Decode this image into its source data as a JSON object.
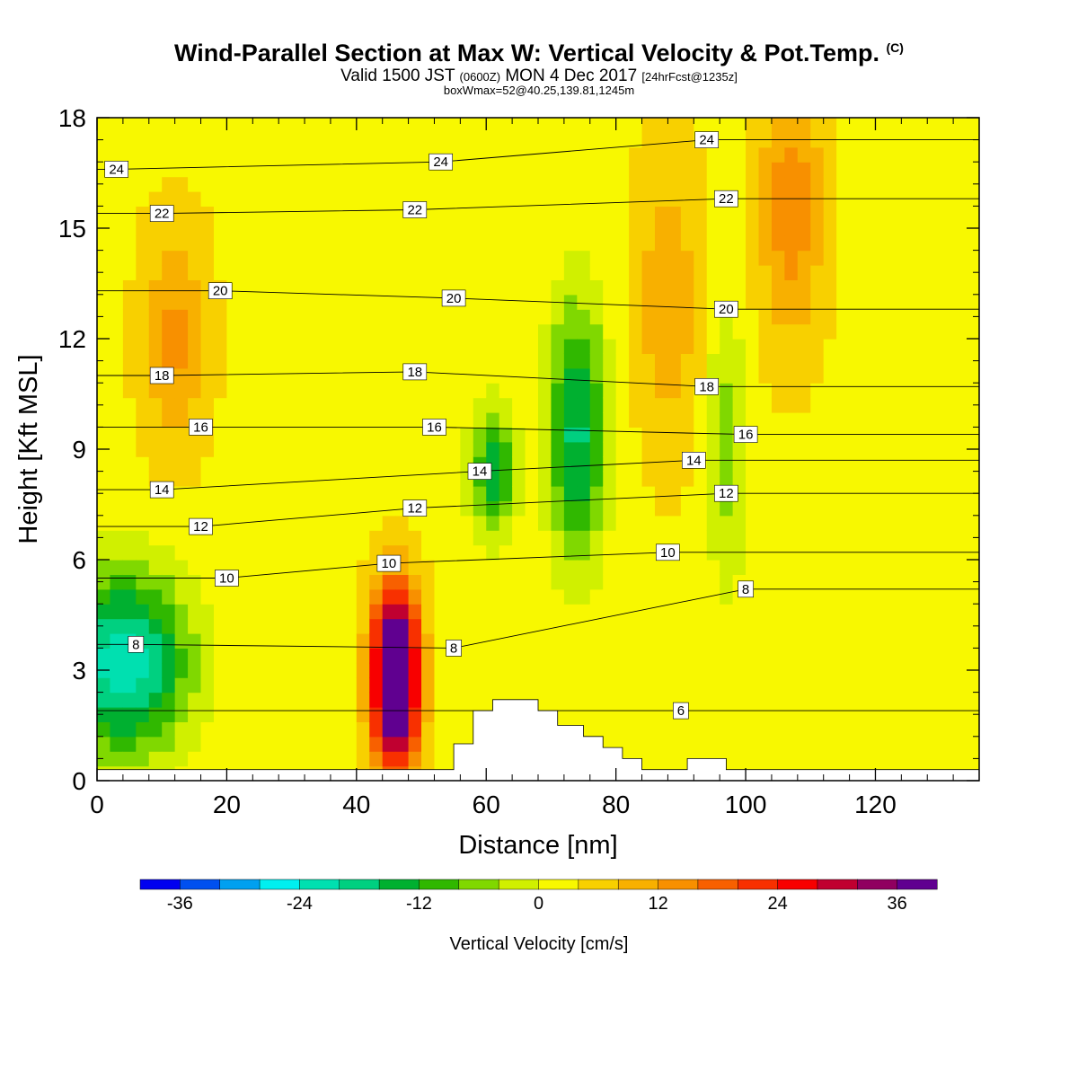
{
  "header": {
    "title": "Wind-Parallel Section at Max W: Vertical Velocity & Pot.Temp.",
    "copyright": "(C)",
    "valid_prefix": "Valid 1500 JST",
    "valid_z": "(0600Z)",
    "valid_date": "MON 4 Dec 2017",
    "forecast": "[24hrFcst@1235z]",
    "box": "boxWmax=52@40.25,139.81,1245m"
  },
  "chart_data": {
    "type": "heatmap",
    "title": "Wind-Parallel Section at Max W: Vertical Velocity & Pot.Temp.",
    "xlabel": "Distance [nm]",
    "ylabel": "Height [Kft MSL]",
    "xlim": [
      0,
      136
    ],
    "ylim": [
      0,
      18
    ],
    "xticks": [
      "0",
      "20",
      "40",
      "60",
      "80",
      "100",
      "120"
    ],
    "xtick_values": [
      0,
      20,
      40,
      60,
      80,
      100,
      120
    ],
    "yticks": [
      "0",
      "3",
      "6",
      "9",
      "12",
      "15",
      "18"
    ],
    "ytick_values": [
      0,
      3,
      6,
      9,
      12,
      15,
      18
    ],
    "colorbar": {
      "label": "Vertical Velocity [cm/s]",
      "ticks": [
        "-36",
        "-24",
        "-12",
        "0",
        "12",
        "24",
        "36"
      ],
      "tick_values": [
        -36,
        -24,
        -12,
        0,
        12,
        24,
        36
      ],
      "range": [
        -40,
        40
      ],
      "colors": [
        "#0000f0",
        "#0050f0",
        "#00a0f0",
        "#00f0f0",
        "#00e0b0",
        "#00d080",
        "#00b030",
        "#30b800",
        "#80d800",
        "#d0f000",
        "#f8f800",
        "#f8d000",
        "#f8b000",
        "#f89000",
        "#f86000",
        "#f83000",
        "#f80000",
        "#c00030",
        "#900060",
        "#600090"
      ]
    },
    "features": [
      {
        "name": "updraft core",
        "x": 46,
        "y": 2.8,
        "rx": 3.5,
        "ry": 2.3,
        "w": 52
      },
      {
        "name": "downdraft",
        "x": 4,
        "y": 3.2,
        "rx": 10,
        "ry": 2.5,
        "w": -26
      },
      {
        "name": "downdraft",
        "x": 74,
        "y": 9.5,
        "rx": 4.5,
        "ry": 3.5,
        "w": -20
      },
      {
        "name": "downdraft",
        "x": 61,
        "y": 8.4,
        "rx": 3.5,
        "ry": 1.8,
        "w": -17
      },
      {
        "name": "downdraft",
        "x": 97,
        "y": 9,
        "rx": 3,
        "ry": 4,
        "w": -9
      },
      {
        "name": "updraft",
        "x": 12,
        "y": 12,
        "rx": 5,
        "ry": 3,
        "w": 10
      },
      {
        "name": "updraft",
        "x": 107,
        "y": 15.5,
        "rx": 5,
        "ry": 3.5,
        "w": 12
      },
      {
        "name": "updraft",
        "x": 88,
        "y": 13,
        "rx": 5,
        "ry": 4,
        "w": 8
      }
    ],
    "theta_contour_labels": [
      {
        "text": "24",
        "x": 3,
        "y": 16.6
      },
      {
        "text": "24",
        "x": 53,
        "y": 16.8
      },
      {
        "text": "24",
        "x": 94,
        "y": 17.4
      },
      {
        "text": "22",
        "x": 10,
        "y": 15.4
      },
      {
        "text": "22",
        "x": 49,
        "y": 15.5
      },
      {
        "text": "22",
        "x": 97,
        "y": 15.8
      },
      {
        "text": "20",
        "x": 19,
        "y": 13.3
      },
      {
        "text": "20",
        "x": 55,
        "y": 13.1
      },
      {
        "text": "20",
        "x": 97,
        "y": 12.8
      },
      {
        "text": "18",
        "x": 10,
        "y": 11.0
      },
      {
        "text": "18",
        "x": 49,
        "y": 11.1
      },
      {
        "text": "18",
        "x": 94,
        "y": 10.7
      },
      {
        "text": "16",
        "x": 16,
        "y": 9.6
      },
      {
        "text": "16",
        "x": 52,
        "y": 9.6
      },
      {
        "text": "16",
        "x": 100,
        "y": 9.4
      },
      {
        "text": "14",
        "x": 10,
        "y": 7.9
      },
      {
        "text": "14",
        "x": 59,
        "y": 8.4
      },
      {
        "text": "14",
        "x": 92,
        "y": 8.7
      },
      {
        "text": "12",
        "x": 16,
        "y": 6.9
      },
      {
        "text": "12",
        "x": 49,
        "y": 7.4
      },
      {
        "text": "12",
        "x": 97,
        "y": 7.8
      },
      {
        "text": "10",
        "x": 20,
        "y": 5.5
      },
      {
        "text": "10",
        "x": 45,
        "y": 5.9
      },
      {
        "text": "10",
        "x": 88,
        "y": 6.2
      },
      {
        "text": "8",
        "x": 6,
        "y": 3.7
      },
      {
        "text": "8",
        "x": 55,
        "y": 3.6
      },
      {
        "text": "8",
        "x": 100,
        "y": 5.2
      },
      {
        "text": "6",
        "x": 90,
        "y": 1.9
      }
    ],
    "terrain": [
      [
        0,
        0.3
      ],
      [
        55,
        0.3
      ],
      [
        55,
        1.0
      ],
      [
        58,
        1.0
      ],
      [
        58,
        1.9
      ],
      [
        61,
        1.9
      ],
      [
        61,
        2.2
      ],
      [
        68,
        2.2
      ],
      [
        68,
        1.9
      ],
      [
        71,
        1.9
      ],
      [
        71,
        1.5
      ],
      [
        75,
        1.5
      ],
      [
        75,
        1.2
      ],
      [
        78,
        1.2
      ],
      [
        78,
        0.9
      ],
      [
        81,
        0.9
      ],
      [
        81,
        0.6
      ],
      [
        84,
        0.6
      ],
      [
        84,
        0.3
      ],
      [
        91,
        0.3
      ],
      [
        91,
        0.6
      ],
      [
        97,
        0.6
      ],
      [
        97,
        0.3
      ],
      [
        136,
        0.3
      ]
    ]
  }
}
